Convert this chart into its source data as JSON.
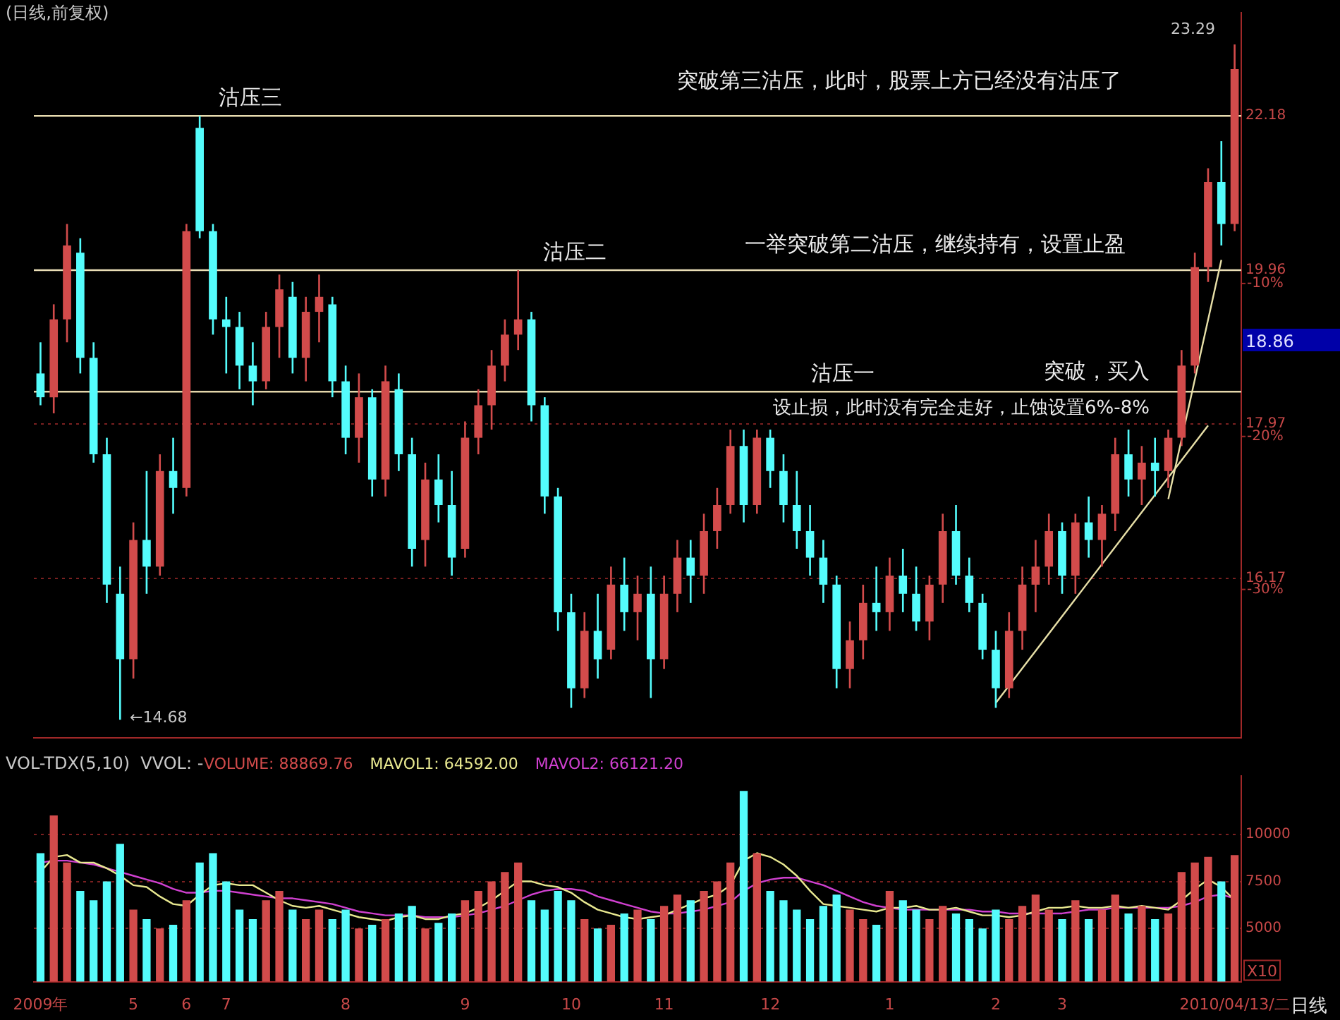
{
  "chart_data": [
    {
      "type": "candlestick",
      "title": "(日线,前复权)",
      "categories": [
        null,
        null,
        null,
        null,
        null,
        null,
        null,
        null,
        null,
        null,
        null,
        null,
        null,
        null,
        null,
        null,
        null,
        null,
        null,
        null,
        null,
        null,
        null,
        null,
        null,
        null,
        null,
        null,
        null,
        null,
        null,
        null,
        null,
        null,
        null,
        null,
        null,
        null,
        null,
        null,
        null,
        null,
        null,
        null,
        null,
        null,
        null,
        null,
        null,
        null,
        null,
        null,
        null,
        null,
        null,
        null,
        null,
        null,
        null,
        null,
        null,
        null,
        null,
        null,
        null,
        null,
        null,
        null,
        null,
        null,
        null,
        null,
        null,
        null,
        null,
        null,
        null,
        null,
        null,
        null,
        null,
        null,
        null,
        null,
        null,
        null,
        null,
        null,
        null,
        null,
        null
      ],
      "ohlc": [
        [
          18.6,
          19.0,
          18.2,
          18.3
        ],
        [
          18.3,
          19.5,
          18.1,
          19.3
        ],
        [
          19.3,
          20.6,
          19.0,
          20.3
        ],
        [
          20.2,
          20.4,
          18.6,
          18.8
        ],
        [
          18.8,
          19.0,
          17.5,
          17.6
        ],
        [
          17.6,
          17.8,
          15.9,
          16.1
        ],
        [
          16.0,
          16.3,
          14.68,
          15.3
        ],
        [
          15.3,
          16.8,
          15.1,
          16.6
        ],
        [
          16.6,
          17.4,
          16.0,
          16.3
        ],
        [
          16.3,
          17.6,
          16.2,
          17.4
        ],
        [
          17.4,
          17.8,
          16.9,
          17.2
        ],
        [
          17.2,
          20.6,
          17.1,
          20.5
        ],
        [
          22.0,
          22.18,
          20.4,
          20.5
        ],
        [
          20.5,
          20.6,
          19.1,
          19.3
        ],
        [
          19.3,
          19.6,
          18.6,
          19.2
        ],
        [
          19.2,
          19.4,
          18.4,
          18.7
        ],
        [
          18.7,
          19.0,
          18.2,
          18.5
        ],
        [
          18.5,
          19.4,
          18.4,
          19.2
        ],
        [
          19.2,
          19.9,
          18.8,
          19.7
        ],
        [
          19.6,
          19.8,
          18.6,
          18.8
        ],
        [
          18.8,
          19.6,
          18.5,
          19.4
        ],
        [
          19.4,
          19.9,
          19.0,
          19.6
        ],
        [
          19.5,
          19.6,
          18.3,
          18.5
        ],
        [
          18.5,
          18.7,
          17.6,
          17.8
        ],
        [
          17.8,
          18.6,
          17.5,
          18.3
        ],
        [
          18.3,
          18.4,
          17.1,
          17.3
        ],
        [
          17.3,
          18.7,
          17.1,
          18.5
        ],
        [
          18.4,
          18.6,
          17.4,
          17.6
        ],
        [
          17.6,
          17.8,
          16.3,
          16.5
        ],
        [
          16.6,
          17.5,
          16.3,
          17.3
        ],
        [
          17.3,
          17.6,
          16.8,
          17.0
        ],
        [
          17.0,
          17.4,
          16.2,
          16.4
        ],
        [
          16.5,
          18.0,
          16.4,
          17.8
        ],
        [
          17.8,
          18.4,
          17.6,
          18.2
        ],
        [
          18.2,
          18.9,
          17.9,
          18.7
        ],
        [
          18.7,
          19.3,
          18.5,
          19.1
        ],
        [
          19.1,
          19.96,
          18.9,
          19.3
        ],
        [
          19.3,
          19.4,
          18.0,
          18.2
        ],
        [
          18.2,
          18.3,
          16.9,
          17.1
        ],
        [
          17.1,
          17.2,
          15.6,
          15.8
        ],
        [
          15.8,
          16.0,
          14.8,
          15.0
        ],
        [
          15.0,
          15.8,
          14.9,
          15.6
        ],
        [
          15.6,
          16.0,
          15.1,
          15.3
        ],
        [
          15.4,
          16.3,
          15.3,
          16.1
        ],
        [
          16.1,
          16.4,
          15.6,
          15.8
        ],
        [
          15.8,
          16.2,
          15.5,
          16.0
        ],
        [
          16.0,
          16.3,
          14.9,
          15.3
        ],
        [
          15.3,
          16.2,
          15.2,
          16.0
        ],
        [
          16.0,
          16.6,
          15.8,
          16.4
        ],
        [
          16.4,
          16.6,
          15.9,
          16.2
        ],
        [
          16.2,
          16.9,
          16.0,
          16.7
        ],
        [
          16.7,
          17.2,
          16.5,
          17.0
        ],
        [
          17.0,
          17.9,
          16.9,
          17.7
        ],
        [
          17.7,
          17.9,
          16.8,
          17.0
        ],
        [
          17.0,
          17.9,
          16.9,
          17.8
        ],
        [
          17.8,
          17.9,
          17.2,
          17.4
        ],
        [
          17.4,
          17.6,
          16.8,
          17.0
        ],
        [
          17.0,
          17.4,
          16.5,
          16.7
        ],
        [
          16.7,
          17.0,
          16.2,
          16.4
        ],
        [
          16.4,
          16.6,
          15.9,
          16.1
        ],
        [
          16.1,
          16.2,
          15.0,
          15.2
        ],
        [
          15.2,
          15.7,
          15.0,
          15.5
        ],
        [
          15.5,
          16.1,
          15.3,
          15.9
        ],
        [
          15.9,
          16.3,
          15.6,
          15.8
        ],
        [
          15.8,
          16.4,
          15.6,
          16.2
        ],
        [
          16.2,
          16.5,
          15.8,
          16.0
        ],
        [
          16.0,
          16.3,
          15.6,
          15.7
        ],
        [
          15.7,
          16.2,
          15.5,
          16.1
        ],
        [
          16.1,
          16.9,
          15.9,
          16.7
        ],
        [
          16.7,
          17.0,
          16.1,
          16.2
        ],
        [
          16.2,
          16.4,
          15.8,
          15.9
        ],
        [
          15.9,
          16.0,
          15.3,
          15.4
        ],
        [
          15.4,
          15.6,
          14.8,
          15.0
        ],
        [
          15.0,
          15.8,
          14.9,
          15.6
        ],
        [
          15.6,
          16.3,
          15.4,
          16.1
        ],
        [
          16.1,
          16.6,
          15.8,
          16.3
        ],
        [
          16.3,
          16.9,
          16.1,
          16.7
        ],
        [
          16.7,
          16.8,
          16.0,
          16.2
        ],
        [
          16.2,
          16.9,
          16.0,
          16.8
        ],
        [
          16.8,
          17.1,
          16.4,
          16.6
        ],
        [
          16.6,
          17.0,
          16.3,
          16.9
        ],
        [
          16.9,
          17.8,
          16.7,
          17.6
        ],
        [
          17.6,
          17.9,
          17.1,
          17.3
        ],
        [
          17.3,
          17.7,
          17.0,
          17.5
        ],
        [
          17.5,
          17.8,
          17.1,
          17.4
        ],
        [
          17.4,
          17.9,
          17.2,
          17.8
        ],
        [
          17.8,
          18.9,
          17.7,
          18.7
        ],
        [
          18.7,
          20.2,
          18.6,
          20.0
        ],
        [
          20.0,
          21.4,
          19.8,
          21.2
        ],
        [
          21.2,
          21.8,
          20.3,
          20.6
        ],
        [
          20.6,
          23.29,
          20.5,
          22.9
        ]
      ],
      "colors": [
        "#54fcfc",
        "#d24b4b",
        "#d24b4b",
        "#54fcfc",
        "#54fcfc",
        "#54fcfc",
        "#54fcfc",
        "#d24b4b",
        "#54fcfc",
        "#d24b4b",
        "#54fcfc",
        "#d24b4b",
        "#54fcfc",
        "#54fcfc",
        "#54fcfc",
        "#54fcfc",
        "#54fcfc",
        "#d24b4b",
        "#d24b4b",
        "#54fcfc",
        "#d24b4b",
        "#d24b4b",
        "#54fcfc",
        "#54fcfc",
        "#d24b4b",
        "#54fcfc",
        "#d24b4b",
        "#54fcfc",
        "#54fcfc",
        "#d24b4b",
        "#54fcfc",
        "#54fcfc",
        "#d24b4b",
        "#d24b4b",
        "#d24b4b",
        "#d24b4b",
        "#d24b4b",
        "#54fcfc",
        "#54fcfc",
        "#54fcfc",
        "#54fcfc",
        "#d24b4b",
        "#54fcfc",
        "#d24b4b",
        "#54fcfc",
        "#d24b4b",
        "#54fcfc",
        "#d24b4b",
        "#d24b4b",
        "#54fcfc",
        "#d24b4b",
        "#d24b4b",
        "#d24b4b",
        "#54fcfc",
        "#d24b4b",
        "#54fcfc",
        "#54fcfc",
        "#54fcfc",
        "#54fcfc",
        "#54fcfc",
        "#54fcfc",
        "#d24b4b",
        "#d24b4b",
        "#54fcfc",
        "#d24b4b",
        "#54fcfc",
        "#54fcfc",
        "#d24b4b",
        "#d24b4b",
        "#54fcfc",
        "#54fcfc",
        "#54fcfc",
        "#54fcfc",
        "#d24b4b",
        "#d24b4b",
        "#d24b4b",
        "#d24b4b",
        "#54fcfc",
        "#d24b4b",
        "#54fcfc",
        "#d24b4b",
        "#d24b4b",
        "#54fcfc",
        "#d24b4b",
        "#54fcfc",
        "#d24b4b",
        "#d24b4b",
        "#d24b4b",
        "#d24b4b",
        "#54fcfc",
        "#d24b4b"
      ],
      "series": [
        {
          "type": "line",
          "color": "#e8e0a8",
          "values": [
            null,
            null,
            null,
            null,
            null,
            null,
            null,
            null,
            null,
            null,
            null,
            null,
            null,
            null,
            null,
            null,
            null,
            null,
            null,
            null,
            null,
            null,
            null,
            null,
            null,
            null,
            null,
            null,
            null,
            null,
            null,
            null,
            null,
            null,
            null,
            null,
            null,
            null,
            null,
            null,
            null,
            null,
            null,
            null,
            null,
            null,
            null,
            null,
            null,
            null,
            null,
            null,
            null,
            null,
            null,
            null,
            null,
            null,
            null,
            null,
            null,
            null,
            null,
            null,
            null,
            null,
            null,
            null,
            null,
            null,
            null,
            null,
            14.85,
            null,
            null,
            null,
            null,
            null,
            null,
            null,
            null,
            null,
            null,
            null,
            null,
            null,
            null,
            null,
            17.95,
            null,
            null
          ]
        },
        {
          "type": "line",
          "color": "#e8e0a8",
          "values": [
            null,
            null,
            null,
            null,
            null,
            null,
            null,
            null,
            null,
            null,
            null,
            null,
            null,
            null,
            null,
            null,
            null,
            null,
            null,
            null,
            null,
            null,
            null,
            null,
            null,
            null,
            null,
            null,
            null,
            null,
            null,
            null,
            null,
            null,
            null,
            null,
            null,
            null,
            null,
            null,
            null,
            null,
            null,
            null,
            null,
            null,
            null,
            null,
            null,
            null,
            null,
            null,
            null,
            null,
            null,
            null,
            null,
            null,
            null,
            null,
            null,
            null,
            null,
            null,
            null,
            null,
            null,
            null,
            null,
            null,
            null,
            null,
            null,
            null,
            null,
            null,
            null,
            null,
            null,
            null,
            null,
            null,
            null,
            null,
            null,
            17.07,
            null,
            null,
            null,
            20.1,
            null
          ]
        }
      ],
      "ylim": [
        14.5,
        23.8
      ],
      "yticks": [
        22.18,
        19.96,
        17.97,
        16.17
      ],
      "y2lim": [
        -39.7,
        7.7
      ],
      "y2ticks": [
        {
          "value": -10,
          "label": "-10%"
        },
        {
          "value": -20,
          "label": "-20%"
        },
        {
          "value": -30,
          "label": "-30%"
        }
      ],
      "log": true,
      "grid": "y",
      "tick_labels": "y",
      "marker": "none",
      "ref_lines": [
        {
          "axis": "y",
          "value": 22.18,
          "label": "沽压三",
          "color": "#e8dcb0"
        },
        {
          "axis": "y",
          "value": 19.96,
          "label": "沽压二",
          "color": "#eadeb6"
        },
        {
          "axis": "y",
          "value": 18.37,
          "label": "沽压一",
          "color": "#e4d6aa"
        }
      ],
      "annotations": [
        "突破第三沽压，此时，股票上方已经没有沽压了",
        "一举突破第二沽压，继续持有，设置止盈",
        "突破，买入",
        "设止损，此时没有完全走好，止蚀设置6%-8%",
        "23.29",
        "←14.68",
        "18.86"
      ]
    },
    {
      "type": "bar",
      "title": "VOL-TDX(5,10)  VVOL: -",
      "categories": [
        "2009年",
        null,
        null,
        null,
        null,
        null,
        null,
        "5",
        null,
        null,
        null,
        "6",
        null,
        null,
        "7",
        null,
        null,
        null,
        null,
        null,
        null,
        null,
        null,
        "8",
        null,
        null,
        null,
        null,
        null,
        null,
        null,
        null,
        "9",
        null,
        null,
        null,
        null,
        null,
        null,
        null,
        "10",
        null,
        null,
        null,
        null,
        null,
        null,
        "11",
        null,
        null,
        null,
        null,
        null,
        null,
        null,
        "12",
        null,
        null,
        null,
        null,
        null,
        null,
        null,
        null,
        "1",
        null,
        null,
        null,
        null,
        null,
        null,
        null,
        "2",
        null,
        null,
        null,
        null,
        "3",
        null,
        null,
        null,
        null,
        null,
        null,
        null,
        null,
        null,
        null,
        null,
        null,
        "2010/04/13/二"
      ],
      "series": [
        {
          "name": "VOLUME: 88869.76",
          "type": "bar",
          "colors": [
            "#54fcfc",
            "#d24b4b",
            "#d24b4b",
            "#54fcfc",
            "#54fcfc",
            "#54fcfc",
            "#54fcfc",
            "#d24b4b",
            "#54fcfc",
            "#d24b4b",
            "#54fcfc",
            "#d24b4b",
            "#54fcfc",
            "#54fcfc",
            "#54fcfc",
            "#54fcfc",
            "#54fcfc",
            "#d24b4b",
            "#d24b4b",
            "#54fcfc",
            "#d24b4b",
            "#d24b4b",
            "#54fcfc",
            "#54fcfc",
            "#d24b4b",
            "#54fcfc",
            "#d24b4b",
            "#54fcfc",
            "#54fcfc",
            "#d24b4b",
            "#54fcfc",
            "#54fcfc",
            "#d24b4b",
            "#d24b4b",
            "#d24b4b",
            "#d24b4b",
            "#d24b4b",
            "#54fcfc",
            "#54fcfc",
            "#54fcfc",
            "#54fcfc",
            "#d24b4b",
            "#54fcfc",
            "#d24b4b",
            "#54fcfc",
            "#d24b4b",
            "#54fcfc",
            "#d24b4b",
            "#d24b4b",
            "#54fcfc",
            "#d24b4b",
            "#d24b4b",
            "#d24b4b",
            "#54fcfc",
            "#d24b4b",
            "#54fcfc",
            "#54fcfc",
            "#54fcfc",
            "#54fcfc",
            "#54fcfc",
            "#54fcfc",
            "#d24b4b",
            "#d24b4b",
            "#54fcfc",
            "#d24b4b",
            "#54fcfc",
            "#54fcfc",
            "#d24b4b",
            "#d24b4b",
            "#54fcfc",
            "#54fcfc",
            "#54fcfc",
            "#54fcfc",
            "#d24b4b",
            "#d24b4b",
            "#d24b4b",
            "#d24b4b",
            "#54fcfc",
            "#d24b4b",
            "#54fcfc",
            "#d24b4b",
            "#d24b4b",
            "#54fcfc",
            "#d24b4b",
            "#54fcfc",
            "#d24b4b",
            "#d24b4b",
            "#d24b4b",
            "#d24b4b",
            "#54fcfc",
            "#d24b4b"
          ],
          "values": [
            9000,
            11000,
            8500,
            7000,
            6500,
            7500,
            9500,
            6000,
            5500,
            5000,
            5200,
            6500,
            8500,
            9000,
            7500,
            6000,
            5500,
            6500,
            7000,
            6000,
            5500,
            6000,
            5500,
            6000,
            5000,
            5200,
            5500,
            5800,
            6200,
            5000,
            5300,
            5800,
            6500,
            7000,
            7500,
            8000,
            8500,
            6500,
            6000,
            7000,
            6500,
            5500,
            5000,
            5200,
            5800,
            6000,
            5500,
            6200,
            6800,
            6500,
            7000,
            7500,
            8500,
            12300,
            9000,
            7000,
            6500,
            6000,
            5500,
            6200,
            6800,
            6000,
            5500,
            5200,
            7000,
            6500,
            6000,
            5500,
            6200,
            5800,
            5500,
            5000,
            6000,
            5500,
            6200,
            6800,
            6000,
            5500,
            6500,
            5500,
            6000,
            6800,
            5800,
            6200,
            5500,
            5800,
            8000,
            8500,
            8800,
            7500,
            8900
          ]
        },
        {
          "name": "MAVOL1: 64592.00",
          "type": "line",
          "color": "#e8e890",
          "values": [
            8000,
            8800,
            8900,
            8500,
            8500,
            8200,
            7800,
            7300,
            7200,
            6700,
            6300,
            6200,
            6800,
            7300,
            7400,
            7300,
            7300,
            6900,
            6500,
            6200,
            6100,
            6200,
            6000,
            5800,
            5600,
            5500,
            5400,
            5600,
            5700,
            5500,
            5500,
            5700,
            5800,
            6100,
            6500,
            7000,
            7500,
            7500,
            7300,
            7200,
            6900,
            6400,
            6000,
            5800,
            5600,
            5500,
            5600,
            5700,
            6000,
            6300,
            6600,
            6800,
            7300,
            8600,
            9000,
            8800,
            8400,
            7800,
            7000,
            6300,
            6200,
            6100,
            6000,
            5900,
            6100,
            6100,
            6200,
            6000,
            6000,
            6100,
            5900,
            5700,
            5700,
            5600,
            5700,
            5900,
            6100,
            6100,
            6200,
            6100,
            6100,
            6200,
            6100,
            6200,
            6100,
            6000,
            6500,
            7100,
            7600,
            7200,
            6500
          ]
        },
        {
          "name": "MAVOL2: 66121.20",
          "type": "line",
          "color": "#d040d0",
          "values": [
            8500,
            8600,
            8600,
            8500,
            8400,
            8200,
            8000,
            7800,
            7600,
            7400,
            7100,
            6900,
            6900,
            7000,
            7000,
            6900,
            6800,
            6700,
            6600,
            6600,
            6500,
            6400,
            6300,
            6100,
            5900,
            5800,
            5700,
            5700,
            5700,
            5600,
            5600,
            5600,
            5700,
            5800,
            6000,
            6200,
            6500,
            6800,
            7000,
            7100,
            7100,
            7000,
            6700,
            6500,
            6300,
            6100,
            5900,
            5800,
            5800,
            5900,
            6000,
            6200,
            6400,
            7000,
            7400,
            7600,
            7700,
            7700,
            7500,
            7300,
            7000,
            6700,
            6400,
            6200,
            6100,
            6000,
            6000,
            6000,
            6000,
            6000,
            6000,
            5900,
            5900,
            5800,
            5800,
            5800,
            5800,
            5800,
            5900,
            6000,
            6000,
            6100,
            6100,
            6100,
            6100,
            6100,
            6200,
            6400,
            6700,
            6800,
            6600
          ]
        }
      ],
      "ylim": [
        2180,
        13100
      ],
      "yticks": [
        5000,
        7500,
        10000
      ],
      "grid": "y",
      "legend": "top left",
      "marker": "none",
      "annotations": [
        "X10",
        "日线"
      ]
    }
  ]
}
